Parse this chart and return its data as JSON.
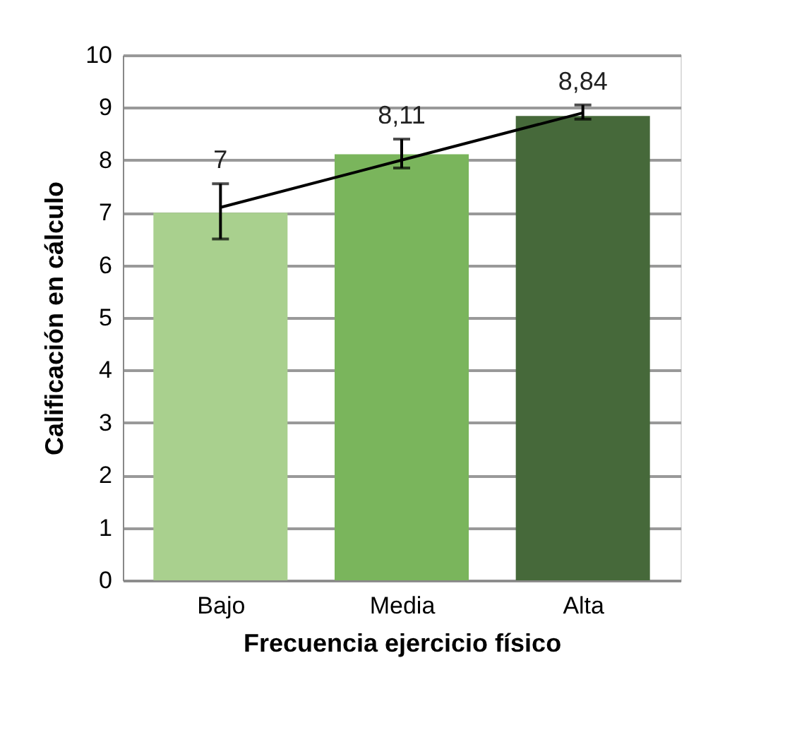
{
  "chart_data": {
    "type": "bar",
    "xlabel": "Frecuencia ejercicio físico",
    "ylabel": "Calificación en cálculo",
    "categories": [
      "Bajo",
      "Media",
      "Alta"
    ],
    "ylim": [
      0,
      10
    ],
    "yticks": [
      0,
      1,
      2,
      3,
      4,
      5,
      6,
      7,
      8,
      9,
      10
    ],
    "grid": "y",
    "series": [
      {
        "type": "bar",
        "colors": [
          "#a9d08e",
          "#7ab55c",
          "#46693a"
        ],
        "values": [
          7,
          8.11,
          8.84
        ],
        "value_labels": [
          "7",
          "8,11",
          "8,84"
        ]
      },
      {
        "type": "line",
        "color": "#000000",
        "values": [
          7.1,
          8.0,
          8.9
        ],
        "errors": [
          [
            6.5,
            7.55
          ],
          [
            7.85,
            8.4
          ],
          [
            8.78,
            9.05
          ]
        ]
      }
    ]
  }
}
